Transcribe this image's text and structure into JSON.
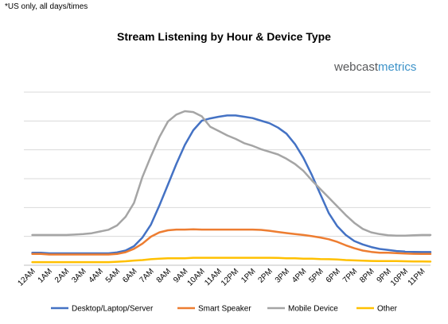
{
  "note": "*US only, all days/times",
  "logo": {
    "part1": "webcast",
    "part2": "metrics"
  },
  "chart_data": {
    "type": "line",
    "title": "Stream Listening by Hour & Device Type",
    "xlabel": "",
    "ylabel": "",
    "ylim": [
      0,
      1
    ],
    "grid": true,
    "y_ticks_labeled": false,
    "legend_position": "bottom",
    "categories": [
      "12AM",
      "1AM",
      "2AM",
      "3AM",
      "4AM",
      "5AM",
      "6AM",
      "7AM",
      "8AM",
      "9AM",
      "10AM",
      "11AM",
      "12PM",
      "1PM",
      "2PM",
      "3PM",
      "4PM",
      "5PM",
      "6PM",
      "7PM",
      "8PM",
      "9PM",
      "10PM",
      "11PM"
    ],
    "x": [
      0,
      0.5,
      1,
      1.5,
      2,
      2.5,
      3,
      3.5,
      4,
      4.5,
      5,
      5.5,
      6,
      6.5,
      7,
      7.5,
      8,
      8.5,
      9,
      9.5,
      10,
      10.5,
      11,
      11.5,
      12,
      12.5,
      13,
      13.5,
      14,
      14.5,
      15,
      15.5,
      16,
      16.5,
      17,
      17.5,
      18,
      18.5,
      19,
      19.5,
      20,
      20.5,
      21,
      21.5,
      22,
      22.5,
      23,
      23.5
    ],
    "series": [
      {
        "name": "Desktop/Laptop/Server",
        "color": "#4472c4",
        "values": [
          0.072,
          0.072,
          0.069,
          0.069,
          0.069,
          0.069,
          0.069,
          0.069,
          0.069,
          0.069,
          0.074,
          0.085,
          0.11,
          0.16,
          0.235,
          0.345,
          0.465,
          0.585,
          0.695,
          0.78,
          0.835,
          0.848,
          0.858,
          0.865,
          0.865,
          0.858,
          0.85,
          0.835,
          0.82,
          0.795,
          0.76,
          0.7,
          0.62,
          0.52,
          0.41,
          0.3,
          0.225,
          0.175,
          0.14,
          0.12,
          0.105,
          0.094,
          0.088,
          0.082,
          0.079,
          0.077,
          0.076,
          0.076
        ]
      },
      {
        "name": "Smart Speaker",
        "color": "#ed7d31",
        "values": [
          0.065,
          0.065,
          0.062,
          0.062,
          0.062,
          0.062,
          0.062,
          0.062,
          0.062,
          0.062,
          0.065,
          0.075,
          0.095,
          0.125,
          0.165,
          0.19,
          0.202,
          0.206,
          0.206,
          0.208,
          0.206,
          0.206,
          0.206,
          0.206,
          0.206,
          0.206,
          0.206,
          0.204,
          0.199,
          0.192,
          0.186,
          0.18,
          0.175,
          0.168,
          0.16,
          0.15,
          0.135,
          0.115,
          0.098,
          0.085,
          0.077,
          0.072,
          0.072,
          0.07,
          0.068,
          0.066,
          0.065,
          0.065
        ]
      },
      {
        "name": "Mobile Device",
        "color": "#a5a5a5",
        "values": [
          0.175,
          0.175,
          0.175,
          0.175,
          0.175,
          0.177,
          0.18,
          0.185,
          0.195,
          0.205,
          0.23,
          0.28,
          0.36,
          0.51,
          0.63,
          0.74,
          0.83,
          0.87,
          0.89,
          0.885,
          0.86,
          0.8,
          0.775,
          0.75,
          0.73,
          0.705,
          0.69,
          0.67,
          0.655,
          0.64,
          0.615,
          0.585,
          0.545,
          0.49,
          0.44,
          0.39,
          0.34,
          0.29,
          0.245,
          0.21,
          0.19,
          0.18,
          0.173,
          0.171,
          0.171,
          0.173,
          0.175,
          0.175
        ]
      },
      {
        "name": "Other",
        "color": "#ffc000",
        "values": [
          0.018,
          0.018,
          0.018,
          0.018,
          0.018,
          0.018,
          0.018,
          0.018,
          0.018,
          0.018,
          0.02,
          0.023,
          0.027,
          0.03,
          0.035,
          0.038,
          0.04,
          0.04,
          0.04,
          0.043,
          0.043,
          0.043,
          0.043,
          0.043,
          0.043,
          0.043,
          0.043,
          0.043,
          0.043,
          0.042,
          0.04,
          0.04,
          0.038,
          0.038,
          0.036,
          0.035,
          0.033,
          0.03,
          0.028,
          0.026,
          0.025,
          0.024,
          0.024,
          0.024,
          0.023,
          0.022,
          0.022,
          0.021
        ]
      }
    ]
  }
}
